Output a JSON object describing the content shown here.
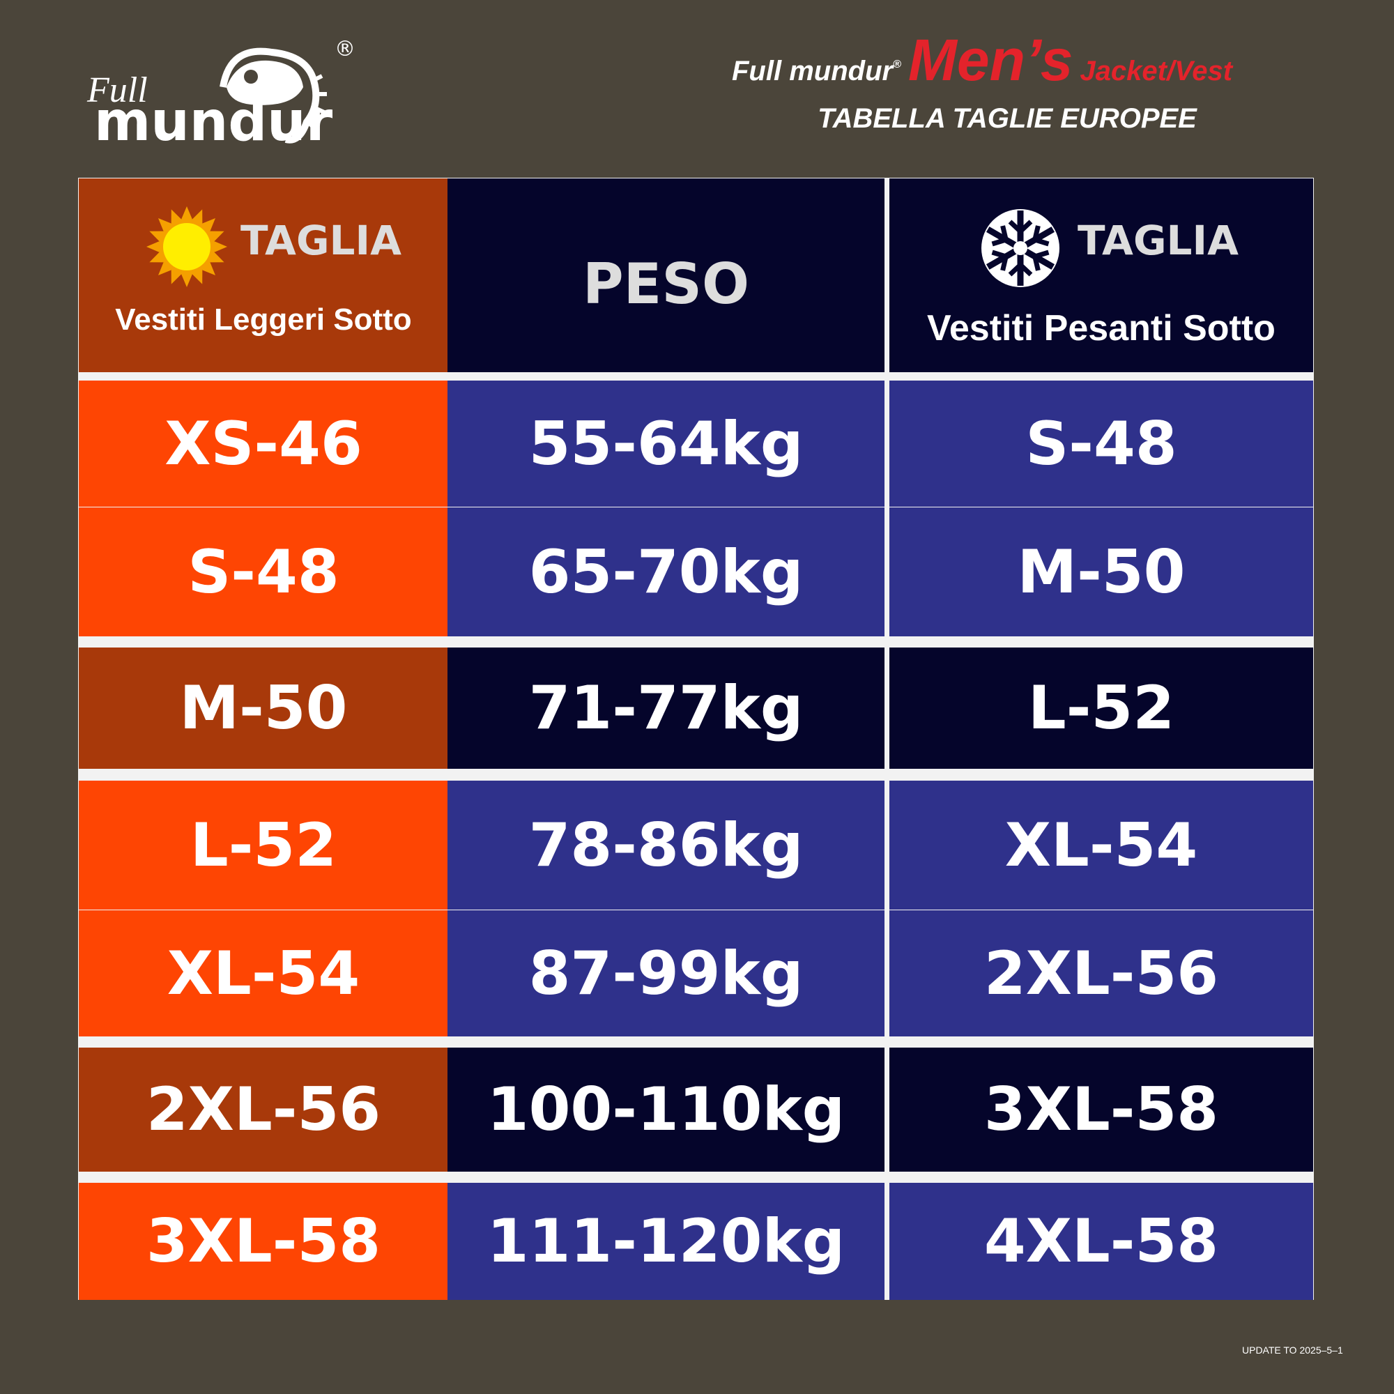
{
  "logo": {
    "script": "Full",
    "name": "mundur",
    "mark": "®"
  },
  "title": {
    "brand": "Full mundur",
    "brand_mark": "®",
    "gender": "Men’s",
    "product": "Jacket/Vest",
    "subtitle": "TABELLA TAGLIE EUROPEE"
  },
  "table": {
    "header": [
      {
        "title": "TAGLIA",
        "note": "Vestiti Leggeri Sotto"
      },
      {
        "title": "PESO"
      },
      {
        "title": "TAGLIA",
        "note": "Vestiti Pesanti Sotto"
      }
    ],
    "rows": [
      [
        "XS-46",
        "55-64kg",
        "S-48"
      ],
      [
        "S-48",
        "65-70kg",
        "M-50"
      ],
      [
        "M-50",
        "71-77kg",
        "L-52"
      ],
      [
        "L-52",
        "78-86kg",
        "XL-54"
      ],
      [
        "XL-54",
        "87-99kg",
        "2XL-56"
      ],
      [
        "2XL-56",
        "100-110kg",
        "3XL-58"
      ],
      [
        "3XL-58",
        "111-120kg",
        "4XL-58"
      ]
    ]
  },
  "footer": "UPDATE TO 2025–5–1"
}
